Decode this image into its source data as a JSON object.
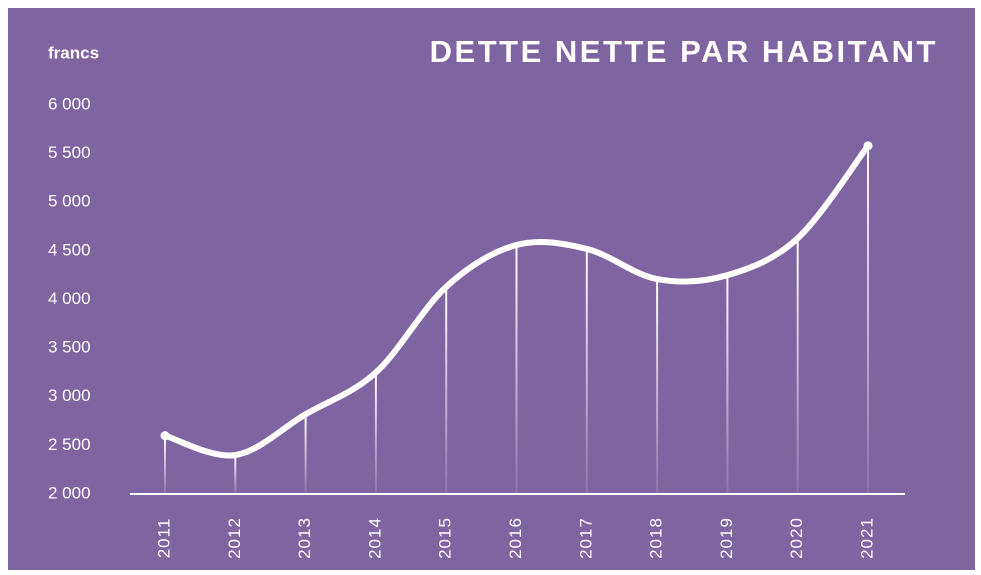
{
  "chart_data": {
    "type": "line",
    "title": "DETTE NETTE PAR HABITANT",
    "ylabel": "francs",
    "categories": [
      "2011",
      "2012",
      "2013",
      "2014",
      "2015",
      "2016",
      "2017",
      "2018",
      "2019",
      "2020",
      "2021"
    ],
    "series": [
      {
        "name": "Dette nette par habitant",
        "color": "#ffffff",
        "values": [
          2600,
          2400,
          2820,
          3250,
          4130,
          4560,
          4520,
          4210,
          4250,
          4630,
          5580
        ]
      }
    ],
    "ylim": [
      2000,
      6000
    ],
    "yticks": [
      {
        "value": 2000,
        "label": "2 000"
      },
      {
        "value": 2500,
        "label": "2 500"
      },
      {
        "value": 3000,
        "label": "3 000"
      },
      {
        "value": 3500,
        "label": "3 500"
      },
      {
        "value": 4000,
        "label": "4 000"
      },
      {
        "value": 4500,
        "label": "4 500"
      },
      {
        "value": 5000,
        "label": "5 000"
      },
      {
        "value": 5500,
        "label": "5 500"
      },
      {
        "value": 6000,
        "label": "6 000"
      }
    ],
    "background": "#7f64a2"
  }
}
